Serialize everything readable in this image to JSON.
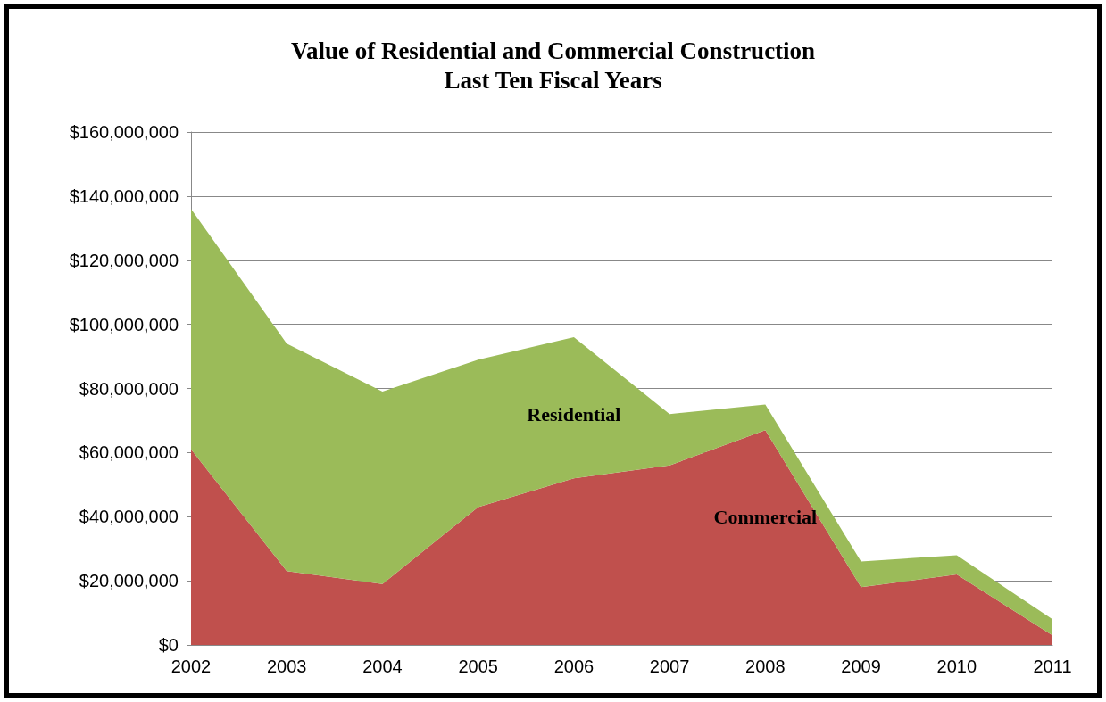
{
  "chart_data": {
    "type": "area",
    "title": "Value of Residential and Commercial Construction",
    "subtitle": "Last Ten Fiscal Years",
    "categories": [
      "2002",
      "2003",
      "2004",
      "2005",
      "2006",
      "2007",
      "2008",
      "2009",
      "2010",
      "2011"
    ],
    "stacked": true,
    "series": [
      {
        "name": "Commercial",
        "color": "#c0504d",
        "values": [
          61000000,
          23000000,
          19000000,
          43000000,
          52000000,
          56000000,
          67000000,
          18000000,
          22000000,
          3000000
        ]
      },
      {
        "name": "Residential",
        "color": "#9bbb59",
        "values": [
          75000000,
          71000000,
          60000000,
          46000000,
          44000000,
          16000000,
          8000000,
          8000000,
          6000000,
          5000000
        ]
      }
    ],
    "ylim": [
      0,
      160000000
    ],
    "yticks": [
      {
        "value": 0,
        "label": "$0"
      },
      {
        "value": 20000000,
        "label": "$20,000,000"
      },
      {
        "value": 40000000,
        "label": "$40,000,000"
      },
      {
        "value": 60000000,
        "label": "$60,000,000"
      },
      {
        "value": 80000000,
        "label": "$80,000,000"
      },
      {
        "value": 100000000,
        "label": "$100,000,000"
      },
      {
        "value": 120000000,
        "label": "$120,000,000"
      },
      {
        "value": 140000000,
        "label": "$140,000,000"
      },
      {
        "value": 160000000,
        "label": "$160,000,000"
      }
    ],
    "grid": "y",
    "legend": false
  }
}
